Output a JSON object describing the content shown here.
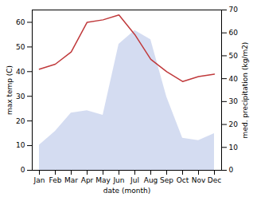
{
  "chart_data": {
    "type": "line",
    "xlabel": "date (month)",
    "ylabel": "max temp (C)",
    "y2label": "med. precipitation (kg/m2)",
    "categories": [
      "Jan",
      "Feb",
      "Mar",
      "Apr",
      "May",
      "Jun",
      "Jul",
      "Aug",
      "Sep",
      "Oct",
      "Nov",
      "Dec"
    ],
    "series": [
      {
        "type": "area",
        "color": "#b8c4e8",
        "axis": "y2",
        "values": [
          11,
          17,
          25,
          26,
          24,
          55,
          61,
          57,
          32,
          14,
          13,
          16
        ]
      },
      {
        "type": "line",
        "color": "#c0393b",
        "values": [
          41,
          43,
          48,
          60,
          61,
          63,
          55,
          45,
          40,
          36,
          38,
          39
        ]
      }
    ],
    "ylim": [
      0,
      65
    ],
    "yticks": [
      0,
      10,
      20,
      30,
      40,
      50,
      60
    ],
    "y2lim": [
      0,
      70
    ],
    "y2ticks": [
      0,
      10,
      20,
      30,
      40,
      50,
      60,
      70
    ]
  }
}
